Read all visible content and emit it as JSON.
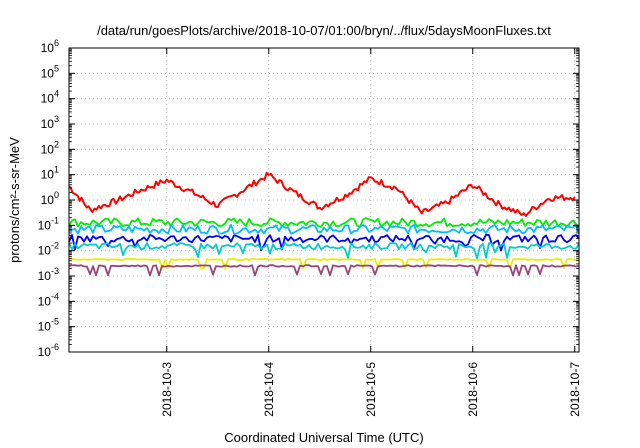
{
  "chart_data": {
    "type": "line",
    "title": "/data/run/goesPlots/archive/2018-10-07/01:00/bryn/../flux/5daysMoonFluxes.txt",
    "xlabel": "Coordinated Universal Time (UTC)",
    "ylabel": "protons/cm²-s-sr-MeV",
    "y_scale": "log",
    "ylim": [
      1e-06,
      1000000.0
    ],
    "y_ticks": [
      {
        "value": 1e-06,
        "base": "10",
        "exp": "-6"
      },
      {
        "value": 1e-05,
        "base": "10",
        "exp": "-5"
      },
      {
        "value": 0.0001,
        "base": "10",
        "exp": "-4"
      },
      {
        "value": 0.001,
        "base": "10",
        "exp": "-3"
      },
      {
        "value": 0.01,
        "base": "10",
        "exp": "-2"
      },
      {
        "value": 0.1,
        "base": "10",
        "exp": "-1"
      },
      {
        "value": 1,
        "base": "10",
        "exp": "0"
      },
      {
        "value": 10,
        "base": "10",
        "exp": "1"
      },
      {
        "value": 100,
        "base": "10",
        "exp": "2"
      },
      {
        "value": 1000,
        "base": "10",
        "exp": "3"
      },
      {
        "value": 10000,
        "base": "10",
        "exp": "4"
      },
      {
        "value": 100000,
        "base": "10",
        "exp": "5"
      },
      {
        "value": 1000000,
        "base": "10",
        "exp": "6"
      }
    ],
    "xlim": [
      "2018-10-02T01:00",
      "2018-10-07T01:00"
    ],
    "x_ticks": [
      "2018-10-3",
      "2018-10-4",
      "2018-10-5",
      "2018-10-6",
      "2018-10-7"
    ],
    "grid": true,
    "series": [
      {
        "color": "#ff0000",
        "x": [
          "2018-10-02T01:00",
          "2018-10-02T06:00",
          "2018-10-02T12:00",
          "2018-10-02T18:00",
          "2018-10-03T00:00",
          "2018-10-03T06:00",
          "2018-10-03T12:00",
          "2018-10-03T18:00",
          "2018-10-04T00:00",
          "2018-10-04T06:00",
          "2018-10-04T12:00",
          "2018-10-04T18:00",
          "2018-10-05T00:00",
          "2018-10-05T06:00",
          "2018-10-05T12:00",
          "2018-10-05T18:00",
          "2018-10-06T00:00",
          "2018-10-06T06:00",
          "2018-10-06T12:00",
          "2018-10-06T18:00",
          "2018-10-07T00:00"
        ],
        "y": [
          3.5,
          0.4,
          0.9,
          2.5,
          6.0,
          2.0,
          0.6,
          2.5,
          10.0,
          2.0,
          0.5,
          1.5,
          7.0,
          3.0,
          0.3,
          0.8,
          4.0,
          0.7,
          0.25,
          1.2,
          1.3
        ]
      },
      {
        "color": "#00ee00",
        "x": [
          "2018-10-02T01:00",
          "2018-10-07T01:00"
        ],
        "y": [
          0.13,
          0.13
        ]
      },
      {
        "color": "#00bbff",
        "x": [
          "2018-10-02T01:00",
          "2018-10-07T01:00"
        ],
        "y": [
          0.07,
          0.07
        ]
      },
      {
        "color": "#0000ff",
        "x": [
          "2018-10-02T01:00",
          "2018-10-07T01:00"
        ],
        "y": [
          0.03,
          0.03
        ]
      },
      {
        "color": "#00cccc",
        "x": [
          "2018-10-02T01:00",
          "2018-10-07T01:00"
        ],
        "y": [
          0.015,
          0.015
        ]
      },
      {
        "color": "#eeee00",
        "x": [
          "2018-10-02T01:00",
          "2018-10-07T01:00"
        ],
        "y": [
          0.0045,
          0.0045
        ]
      },
      {
        "color": "#994477",
        "x": [
          "2018-10-02T01:00",
          "2018-10-07T01:00"
        ],
        "y": [
          0.0025,
          0.0025
        ]
      }
    ]
  }
}
